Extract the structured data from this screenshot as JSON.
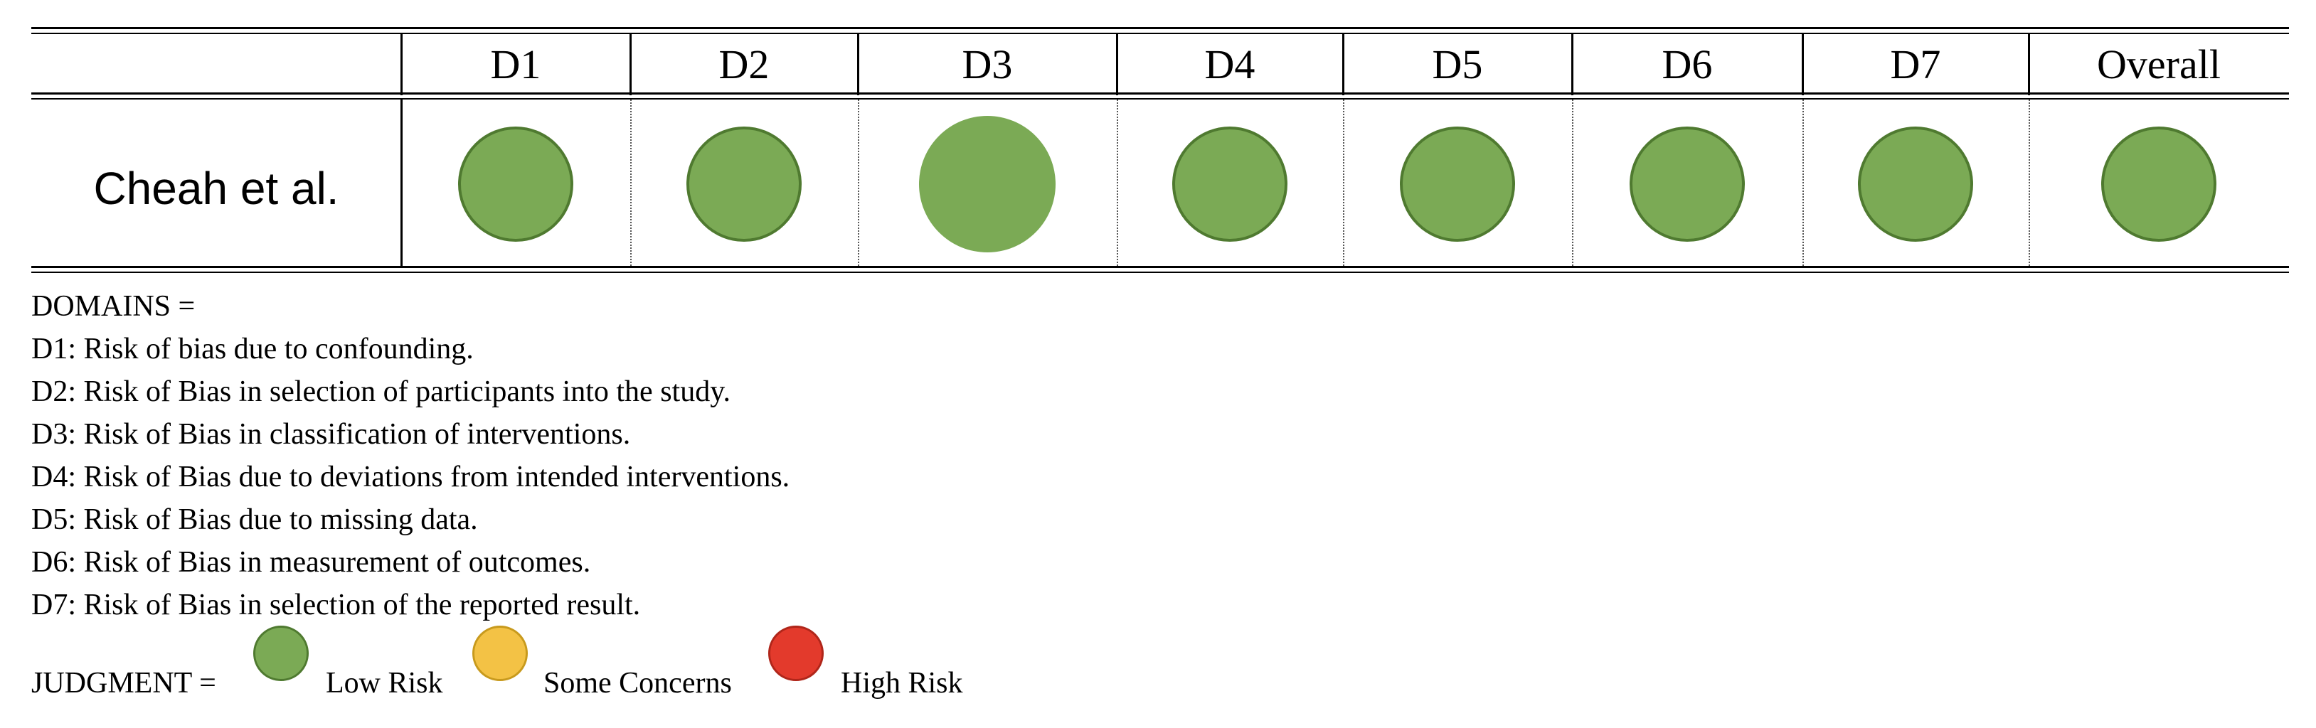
{
  "colors": {
    "low": "#7baa55",
    "low_border": "#4f7a30",
    "some": "#f3c245",
    "some_border": "#c89a1d",
    "high": "#e33a2c",
    "high_border": "#b0261a"
  },
  "table": {
    "columns": [
      "D1",
      "D2",
      "D3",
      "D4",
      "D5",
      "D6",
      "D7",
      "Overall"
    ],
    "rows": [
      {
        "study": "Cheah et al.",
        "judgments": [
          "low",
          "low",
          "low",
          "low",
          "low",
          "low",
          "low",
          "low"
        ]
      }
    ]
  },
  "legend": {
    "domains_title": "DOMAINS =",
    "domains": [
      "D1: Risk of bias due to confounding.",
      "D2: Risk of Bias in selection of participants into the study.",
      "D3: Risk of Bias in classification of interventions.",
      "D4: Risk of Bias due to deviations from intended interventions.",
      "D5: Risk of Bias due to missing data.",
      "D6: Risk of Bias in measurement of outcomes.",
      "D7: Risk of Bias in selection of the reported result."
    ],
    "judgment_title": "JUDGMENT =",
    "judgments": [
      {
        "key": "low",
        "label": "Low Risk",
        "icon": "green-circle-icon"
      },
      {
        "key": "some",
        "label": "Some Concerns",
        "icon": "yellow-circle-icon"
      },
      {
        "key": "high",
        "label": "High Risk",
        "icon": "red-circle-icon"
      }
    ]
  }
}
